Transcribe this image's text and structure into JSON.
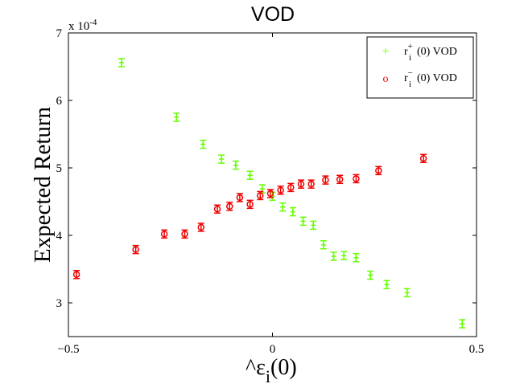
{
  "chart_data": {
    "type": "scatter",
    "title": "VOD",
    "xlabel": "^εi(0)",
    "ylabel": "Expected Return",
    "xlim": [
      -0.5,
      0.5
    ],
    "ylim": [
      2.5,
      7
    ],
    "y_exponent_label": "x 10",
    "y_exponent_power": "-4",
    "x_ticks": [
      {
        "value": -0.5,
        "label": "−0.5"
      },
      {
        "value": 0,
        "label": "0"
      },
      {
        "value": 0.5,
        "label": "0.5"
      }
    ],
    "y_ticks": [
      {
        "value": 3,
        "label": "3"
      },
      {
        "value": 4,
        "label": "4"
      },
      {
        "value": 5,
        "label": "5"
      },
      {
        "value": 6,
        "label": "6"
      },
      {
        "value": 7,
        "label": "7"
      }
    ],
    "grid": false,
    "legend_position": "top-right",
    "series": [
      {
        "name": "r+i(0)  VOD",
        "marker": "plus",
        "color": "#66ff00",
        "points": [
          {
            "x": -0.37,
            "y": 6.56
          },
          {
            "x": -0.235,
            "y": 5.75
          },
          {
            "x": -0.17,
            "y": 5.35
          },
          {
            "x": -0.125,
            "y": 5.13
          },
          {
            "x": -0.09,
            "y": 5.04
          },
          {
            "x": -0.055,
            "y": 4.89
          },
          {
            "x": -0.025,
            "y": 4.69
          },
          {
            "x": 0.0,
            "y": 4.58
          },
          {
            "x": 0.025,
            "y": 4.42
          },
          {
            "x": 0.05,
            "y": 4.35
          },
          {
            "x": 0.075,
            "y": 4.21
          },
          {
            "x": 0.1,
            "y": 4.15
          },
          {
            "x": 0.125,
            "y": 3.86
          },
          {
            "x": 0.15,
            "y": 3.69
          },
          {
            "x": 0.175,
            "y": 3.7
          },
          {
            "x": 0.205,
            "y": 3.67
          },
          {
            "x": 0.24,
            "y": 3.41
          },
          {
            "x": 0.28,
            "y": 3.27
          },
          {
            "x": 0.33,
            "y": 3.15
          },
          {
            "x": 0.465,
            "y": 2.69
          }
        ]
      },
      {
        "name": "r−i(0)  VOD",
        "marker": "circle",
        "color": "#ee0000",
        "points": [
          {
            "x": -0.48,
            "y": 3.42
          },
          {
            "x": -0.335,
            "y": 3.79
          },
          {
            "x": -0.265,
            "y": 4.02
          },
          {
            "x": -0.215,
            "y": 4.02
          },
          {
            "x": -0.175,
            "y": 4.12
          },
          {
            "x": -0.135,
            "y": 4.39
          },
          {
            "x": -0.105,
            "y": 4.43
          },
          {
            "x": -0.08,
            "y": 4.56
          },
          {
            "x": -0.055,
            "y": 4.46
          },
          {
            "x": -0.03,
            "y": 4.59
          },
          {
            "x": -0.005,
            "y": 4.62
          },
          {
            "x": 0.02,
            "y": 4.67
          },
          {
            "x": 0.045,
            "y": 4.71
          },
          {
            "x": 0.07,
            "y": 4.76
          },
          {
            "x": 0.095,
            "y": 4.76
          },
          {
            "x": 0.13,
            "y": 4.82
          },
          {
            "x": 0.165,
            "y": 4.83
          },
          {
            "x": 0.205,
            "y": 4.84
          },
          {
            "x": 0.26,
            "y": 4.96
          },
          {
            "x": 0.37,
            "y": 5.14
          }
        ]
      }
    ],
    "legend": [
      {
        "symbol": "+",
        "base": "r",
        "sup": "+",
        "sub": "i",
        "rest": "(0)  VOD"
      },
      {
        "symbol": "o",
        "base": "r",
        "sup": "−",
        "sub": "i",
        "rest": "(0)  VOD"
      }
    ],
    "xlabel_parts": {
      "prefix": "^ε",
      "sub": "i",
      "rest": "(0)"
    }
  }
}
